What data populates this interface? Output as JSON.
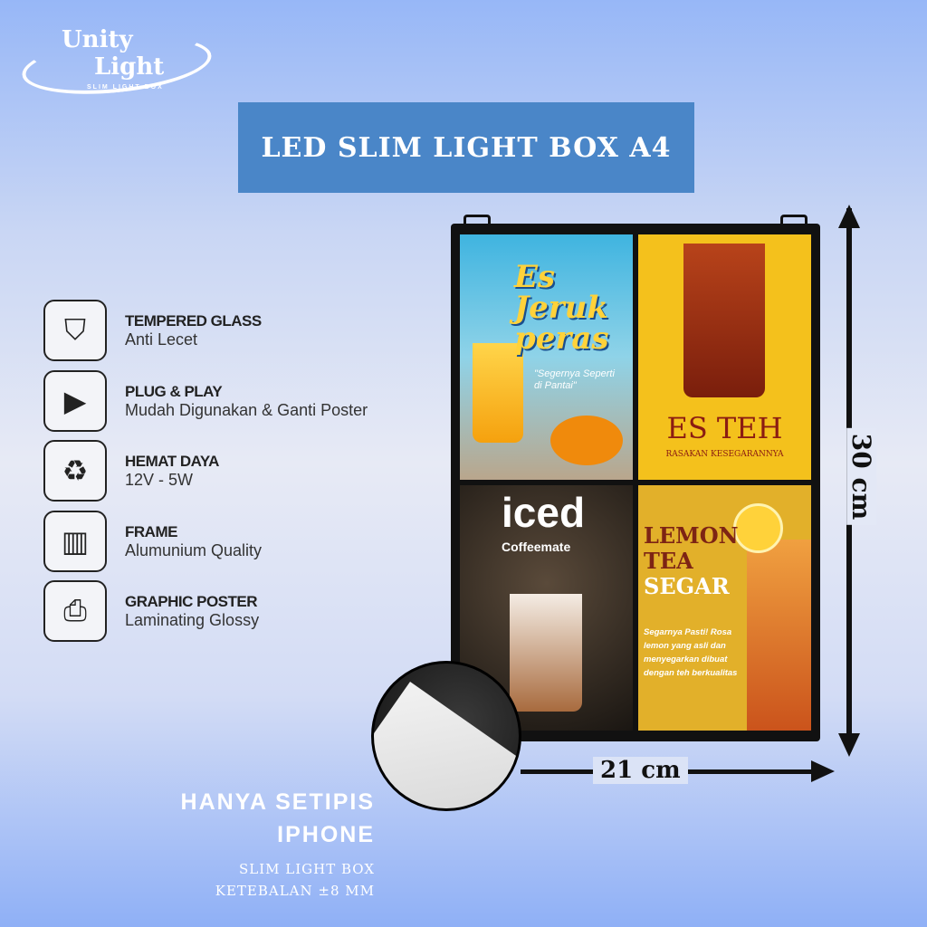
{
  "logo": {
    "line1": "Unity",
    "line2": "Light",
    "tagline": "SLIM LIGHT BOX"
  },
  "title": "LED SLIM LIGHT BOX A4",
  "features": [
    {
      "icon": "shield-check-icon",
      "title": "TEMPERED GLASS",
      "desc": "Anti Lecet"
    },
    {
      "icon": "plug-play-icon",
      "title": "PLUG & PLAY",
      "desc": "Mudah Digunakan & Ganti Poster"
    },
    {
      "icon": "recycle-icon",
      "title": "HEMAT DAYA",
      "desc": "12V - 5W"
    },
    {
      "icon": "frame-roll-icon",
      "title": "FRAME",
      "desc": "Alumunium Quality"
    },
    {
      "icon": "printer-icon",
      "title": "GRAPHIC POSTER",
      "desc": "Laminating Glossy"
    }
  ],
  "posters": {
    "p1": {
      "title": "Es Jeruk peras",
      "quote": "\"Segernya Seperti di Pantai\""
    },
    "p2": {
      "title": "ES TEH",
      "sub": "RASAKAN KESEGARANNYA"
    },
    "p3": {
      "title": "iced",
      "sub": "Coffeemate"
    },
    "p4": {
      "l1": "LEMON",
      "l2": "TEA",
      "l3": "SEGAR",
      "desc": "Segarnya Pasti! Rosa lemon yang asli dan menyegarkan dibuat dengan teh berkualitas"
    }
  },
  "dimensions": {
    "width": "21 cm",
    "height": "30 cm"
  },
  "thin": {
    "headline1": "HANYA SETIPIS",
    "headline2": "IPHONE",
    "line1": "SLIM LIGHT BOX",
    "line2": "KETEBALAN ±8 MM"
  }
}
